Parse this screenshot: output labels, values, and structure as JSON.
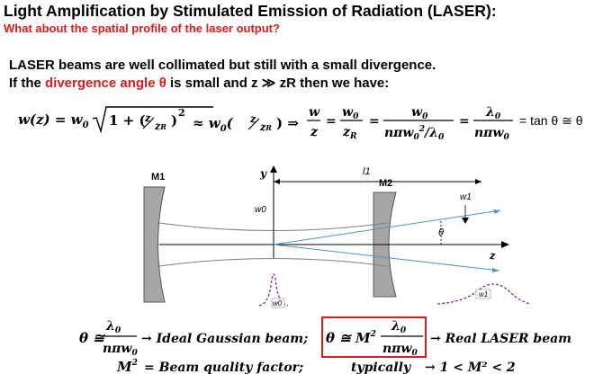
{
  "header": {
    "title": "Light Amplification by Stimulated Emission of Radiation (LASER):",
    "subtitle": "What about the spatial profile of the laser output?"
  },
  "intro": {
    "line1": "LASER beams are well collimated but still with a small divergence.",
    "line2_prefix": "If the ",
    "line2_highlight": "divergence angle θ",
    "line2_suffix": " is small and z ≫ zR then we have:"
  },
  "equation": {
    "lhs": "w(z) = w",
    "approx": "≈ w",
    "tan_part": "= tan θ ≅ θ"
  },
  "diagram": {
    "mirror1_label": "M1",
    "mirror2_label": "M2",
    "y_axis_label": "y",
    "z_axis_label": "z",
    "l1_label": "l1",
    "w0_label": "w0",
    "w1_label": "w1",
    "theta_label": "θ",
    "w0_small_label": "w0",
    "w1_small_label": "w1",
    "colors": {
      "mirror": "#a6a6a6",
      "beam_ray": "#4f93d1",
      "gaussian": "#7a2fa0",
      "highlight_box": "#e01a1a"
    }
  },
  "bottom": {
    "ideal_label": "→ Ideal Gaussian beam;",
    "real_label": "→ Real LASER beam",
    "m2_definition": "= Beam quality factor;",
    "typically": "typically",
    "typical_range": "→ 1 < M² < 2"
  }
}
